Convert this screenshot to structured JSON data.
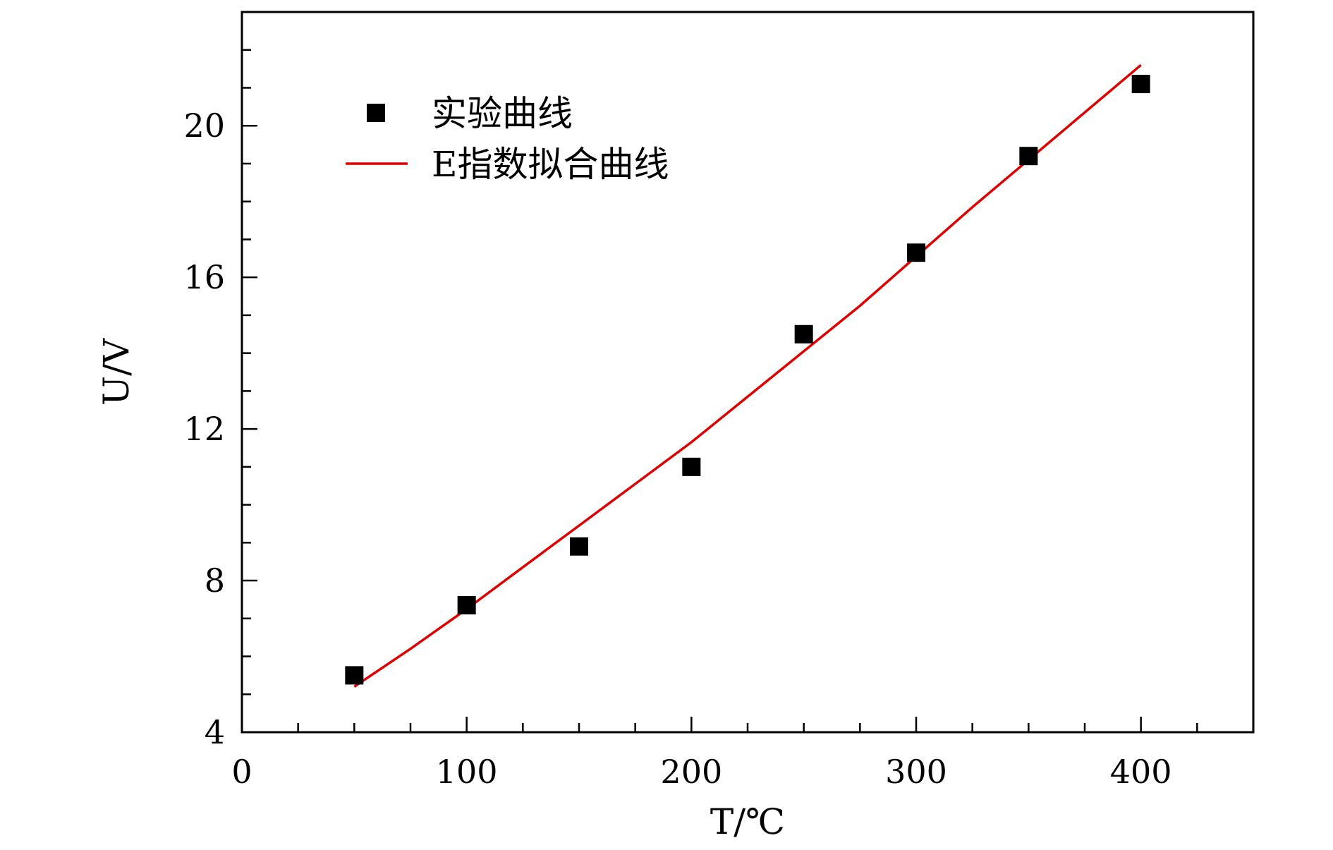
{
  "chart_data": {
    "type": "scatter",
    "title": "",
    "xlabel": "T/℃",
    "ylabel": "U/V",
    "xlim": [
      0,
      450
    ],
    "ylim": [
      4,
      23
    ],
    "x_ticks": [
      0,
      100,
      200,
      300,
      400
    ],
    "x_tick_labels": [
      "0",
      "100",
      "200",
      "300",
      "400"
    ],
    "y_ticks": [
      4,
      8,
      12,
      16,
      20
    ],
    "y_tick_labels": [
      "4",
      "8",
      "12",
      "16",
      "20"
    ],
    "x_minor_step": 25,
    "y_minor_step": 1,
    "grid": false,
    "legend_position": "top-left",
    "series": [
      {
        "name": "实验曲线",
        "kind": "scatter",
        "marker": "square",
        "color": "#000000",
        "x": [
          50,
          100,
          150,
          200,
          250,
          300,
          350,
          400
        ],
        "y": [
          5.5,
          7.35,
          8.9,
          11.0,
          14.5,
          16.65,
          19.2,
          21.1
        ]
      },
      {
        "name": "E指数拟合曲线",
        "kind": "line",
        "color": "#e00000",
        "x": [
          50,
          75,
          100,
          125,
          150,
          175,
          200,
          225,
          250,
          275,
          300,
          325,
          350,
          375,
          400
        ],
        "y": [
          5.2,
          6.2,
          7.25,
          8.35,
          9.45,
          10.55,
          11.65,
          12.85,
          14.05,
          15.25,
          16.55,
          17.85,
          19.1,
          20.35,
          21.6
        ]
      }
    ]
  }
}
